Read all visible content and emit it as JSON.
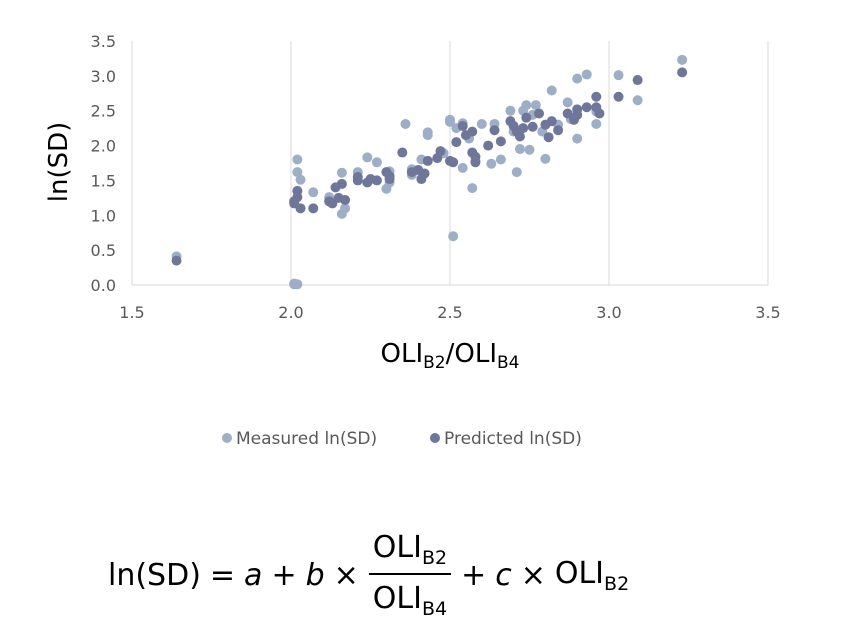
{
  "chart_data": {
    "type": "scatter",
    "title": "",
    "xlabel": "OLI",
    "xlabel_sub1": "B2",
    "xlabel_sep": "/OLI",
    "xlabel_sub2": "B4",
    "ylabel": "ln(SD)",
    "xlim": [
      1.5,
      3.5
    ],
    "ylim": [
      0.0,
      3.5
    ],
    "x_ticks": [
      "1.5",
      "2.0",
      "2.5",
      "3.0",
      "3.5"
    ],
    "y_ticks": [
      "0.0",
      "0.5",
      "1.0",
      "1.5",
      "2.0",
      "2.5",
      "3.0",
      "3.5"
    ],
    "grid": "vertical",
    "legend_position": "bottom",
    "series": [
      {
        "name": "Measured ln(SD)",
        "color": "#9dafc6",
        "points": [
          [
            1.64,
            0.41
          ],
          [
            2.01,
            0.01
          ],
          [
            2.02,
            0.01
          ],
          [
            2.01,
            0.02
          ],
          [
            2.02,
            1.8
          ],
          [
            2.02,
            1.62
          ],
          [
            2.03,
            1.51
          ],
          [
            2.07,
            1.33
          ],
          [
            2.12,
            1.26
          ],
          [
            2.16,
            1.02
          ],
          [
            2.17,
            1.1
          ],
          [
            2.16,
            1.61
          ],
          [
            2.21,
            1.62
          ],
          [
            2.24,
            1.83
          ],
          [
            2.27,
            1.76
          ],
          [
            2.3,
            1.38
          ],
          [
            2.31,
            1.47
          ],
          [
            2.31,
            1.63
          ],
          [
            2.36,
            2.31
          ],
          [
            2.38,
            1.66
          ],
          [
            2.38,
            1.58
          ],
          [
            2.41,
            1.8
          ],
          [
            2.43,
            2.19
          ],
          [
            2.43,
            2.15
          ],
          [
            2.48,
            1.89
          ],
          [
            2.5,
            2.37
          ],
          [
            2.5,
            2.34
          ],
          [
            2.52,
            2.25
          ],
          [
            2.51,
            0.7
          ],
          [
            2.54,
            2.32
          ],
          [
            2.54,
            1.68
          ],
          [
            2.56,
            2.1
          ],
          [
            2.57,
            1.39
          ],
          [
            2.58,
            1.78
          ],
          [
            2.6,
            2.31
          ],
          [
            2.63,
            1.74
          ],
          [
            2.64,
            2.31
          ],
          [
            2.66,
            1.8
          ],
          [
            2.69,
            2.5
          ],
          [
            2.7,
            2.2
          ],
          [
            2.71,
            1.62
          ],
          [
            2.72,
            1.95
          ],
          [
            2.73,
            2.5
          ],
          [
            2.74,
            2.58
          ],
          [
            2.75,
            1.94
          ],
          [
            2.76,
            2.44
          ],
          [
            2.77,
            2.58
          ],
          [
            2.79,
            2.2
          ],
          [
            2.8,
            1.81
          ],
          [
            2.82,
            2.79
          ],
          [
            2.84,
            2.3
          ],
          [
            2.87,
            2.62
          ],
          [
            2.88,
            2.38
          ],
          [
            2.9,
            2.96
          ],
          [
            2.9,
            2.1
          ],
          [
            2.93,
            3.02
          ],
          [
            2.96,
            2.31
          ],
          [
            2.96,
            2.49
          ],
          [
            3.03,
            3.01
          ],
          [
            3.09,
            2.65
          ],
          [
            3.23,
            3.23
          ]
        ]
      },
      {
        "name": "Predicted ln(SD)",
        "color": "#6e7699",
        "points": [
          [
            1.64,
            0.35
          ],
          [
            2.01,
            1.2
          ],
          [
            2.01,
            1.17
          ],
          [
            2.02,
            1.35
          ],
          [
            2.02,
            1.26
          ],
          [
            2.03,
            1.1
          ],
          [
            2.07,
            1.1
          ],
          [
            2.12,
            1.2
          ],
          [
            2.13,
            1.17
          ],
          [
            2.14,
            1.4
          ],
          [
            2.15,
            1.25
          ],
          [
            2.16,
            1.45
          ],
          [
            2.17,
            1.22
          ],
          [
            2.21,
            1.55
          ],
          [
            2.21,
            1.5
          ],
          [
            2.24,
            1.47
          ],
          [
            2.25,
            1.52
          ],
          [
            2.27,
            1.5
          ],
          [
            2.3,
            1.62
          ],
          [
            2.31,
            1.56
          ],
          [
            2.31,
            1.52
          ],
          [
            2.35,
            1.9
          ],
          [
            2.38,
            1.62
          ],
          [
            2.4,
            1.65
          ],
          [
            2.41,
            1.52
          ],
          [
            2.42,
            1.6
          ],
          [
            2.43,
            1.78
          ],
          [
            2.46,
            1.82
          ],
          [
            2.47,
            1.92
          ],
          [
            2.5,
            1.78
          ],
          [
            2.51,
            1.76
          ],
          [
            2.52,
            2.05
          ],
          [
            2.54,
            2.28
          ],
          [
            2.55,
            2.15
          ],
          [
            2.57,
            2.2
          ],
          [
            2.57,
            1.9
          ],
          [
            2.58,
            1.84
          ],
          [
            2.58,
            1.76
          ],
          [
            2.62,
            2.0
          ],
          [
            2.64,
            2.22
          ],
          [
            2.66,
            2.06
          ],
          [
            2.69,
            2.35
          ],
          [
            2.7,
            2.28
          ],
          [
            2.71,
            2.2
          ],
          [
            2.72,
            2.13
          ],
          [
            2.73,
            2.25
          ],
          [
            2.74,
            2.4
          ],
          [
            2.76,
            2.27
          ],
          [
            2.78,
            2.46
          ],
          [
            2.8,
            2.3
          ],
          [
            2.81,
            2.12
          ],
          [
            2.82,
            2.35
          ],
          [
            2.84,
            2.22
          ],
          [
            2.87,
            2.46
          ],
          [
            2.89,
            2.37
          ],
          [
            2.9,
            2.52
          ],
          [
            2.9,
            2.44
          ],
          [
            2.93,
            2.55
          ],
          [
            2.96,
            2.7
          ],
          [
            2.96,
            2.55
          ],
          [
            2.97,
            2.46
          ],
          [
            3.03,
            2.7
          ],
          [
            3.09,
            2.94
          ],
          [
            3.23,
            3.05
          ]
        ]
      }
    ]
  },
  "equation": {
    "lhs": "ln(SD)",
    "equals": "=",
    "var_a": "a",
    "plus": "+",
    "var_b": "b",
    "times": "×",
    "frac_num_base": "OLI",
    "frac_num_sub": "B2",
    "frac_den_base": "OLI",
    "frac_den_sub": "B4",
    "plus2": "+",
    "var_c": "c",
    "times2": "×",
    "tail_base": "OLI",
    "tail_sub": "B2"
  }
}
